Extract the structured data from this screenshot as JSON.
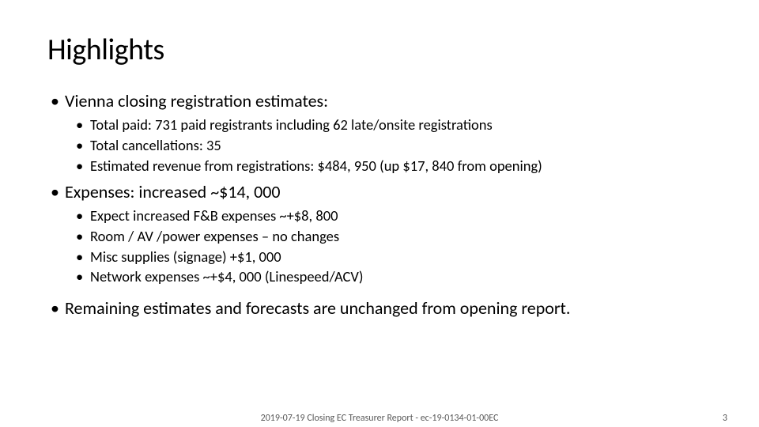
{
  "title": "Highlights",
  "bullets": {
    "b1": {
      "text": "Vienna closing registration estimates:",
      "sub": [
        "Total paid: 731 paid registrants including 62 late/onsite registrations",
        "Total cancellations: 35",
        "Estimated revenue from registrations: $484, 950 (up $17, 840 from opening)"
      ]
    },
    "b2": {
      "text": "Expenses: increased ~$14, 000",
      "sub": [
        "Expect increased F&B expenses ~+$8, 800",
        "Room / AV /power expenses – no changes",
        "Misc supplies (signage) +$1, 000",
        "Network expenses ~+$4, 000 (Linespeed/ACV)"
      ]
    },
    "b3": {
      "text": "Remaining estimates and forecasts are unchanged from opening report."
    }
  },
  "footer": {
    "text": "2019-07-19 Closing EC Treasurer Report -  ec-19-0134-01-00EC",
    "page": "3"
  },
  "style": {
    "background": "#ffffff",
    "text_color": "#000000",
    "footer_color": "#595959",
    "title_fontsize": 38,
    "body_fontsize": 22,
    "sub_fontsize": 18.5,
    "footer_fontsize": 12
  }
}
